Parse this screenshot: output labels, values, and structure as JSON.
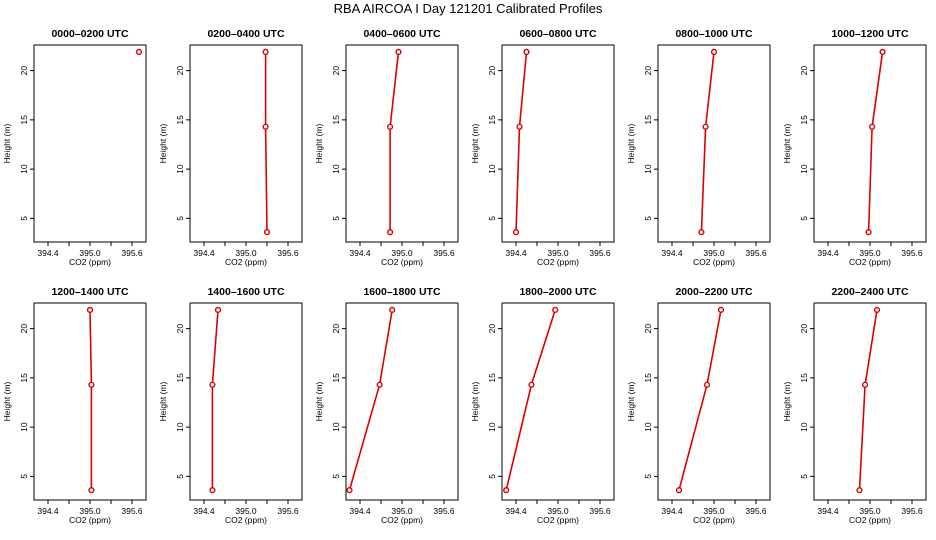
{
  "title": "RBA AIRCOA I  Day 121201  Calibrated Profiles",
  "chart_data": {
    "type": "line",
    "xlabel": "CO2 (ppm)",
    "ylabel": "Height (m)",
    "xlim": [
      394.2,
      395.8
    ],
    "ylim": [
      2.6,
      22.6
    ],
    "xticks": [
      "394.4",
      "395.0",
      "395.6"
    ],
    "xtick_values": [
      394.4,
      394.7,
      395.0,
      395.3,
      395.6
    ],
    "yticks": [
      "5",
      "10",
      "15",
      "20"
    ],
    "ytick_values": [
      5,
      10,
      15,
      20
    ],
    "heights": [
      3.6,
      14.3,
      21.9
    ],
    "series_color": "#dd0000",
    "panels": [
      {
        "title": "0000–0200 UTC",
        "co2": [
          null,
          null,
          395.7
        ]
      },
      {
        "title": "0200–0400 UTC",
        "co2": [
          395.3,
          395.28,
          395.28
        ]
      },
      {
        "title": "0400–0600 UTC",
        "co2": [
          394.83,
          394.83,
          394.95
        ]
      },
      {
        "title": "0600–0800 UTC",
        "co2": [
          394.4,
          394.45,
          394.55
        ]
      },
      {
        "title": "0800–1000 UTC",
        "co2": [
          394.82,
          394.88,
          395.0
        ]
      },
      {
        "title": "1000–1200 UTC",
        "co2": [
          394.98,
          395.03,
          395.18
        ]
      },
      {
        "title": "1200–1400 UTC",
        "co2": [
          395.02,
          395.02,
          395.0
        ]
      },
      {
        "title": "1400–1600 UTC",
        "co2": [
          394.52,
          394.52,
          394.6
        ]
      },
      {
        "title": "1600–1800 UTC",
        "co2": [
          394.25,
          394.68,
          394.86
        ]
      },
      {
        "title": "1800–2000 UTC",
        "co2": [
          394.26,
          394.62,
          394.96
        ]
      },
      {
        "title": "2000–2200 UTC",
        "co2": [
          394.5,
          394.9,
          395.1
        ]
      },
      {
        "title": "2200–2400 UTC",
        "co2": [
          394.85,
          394.93,
          395.1
        ]
      }
    ]
  }
}
